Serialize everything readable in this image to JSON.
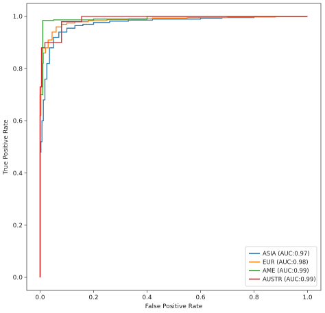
{
  "chart_data": {
    "type": "line",
    "title": "",
    "xlabel": "False Positive Rate",
    "ylabel": "True Positive Rate",
    "xlim": [
      -0.05,
      1.05
    ],
    "ylim": [
      -0.05,
      1.05
    ],
    "xticks": [
      "0.0",
      "0.2",
      "0.4",
      "0.6",
      "0.8",
      "1.0"
    ],
    "yticks": [
      "0.0",
      "0.2",
      "0.4",
      "0.6",
      "0.8",
      "1.0"
    ],
    "grid": false,
    "legend_position": "lower-right",
    "series": [
      {
        "name": "ASIA (AUC:0.97)",
        "color": "#1f77b4",
        "x": [
          0,
          0,
          0.003,
          0.003,
          0.007,
          0.007,
          0.012,
          0.012,
          0.018,
          0.018,
          0.025,
          0.025,
          0.035,
          0.035,
          0.05,
          0.05,
          0.07,
          0.07,
          0.1,
          0.1,
          0.13,
          0.13,
          0.16,
          0.16,
          0.2,
          0.2,
          0.26,
          0.26,
          0.33,
          0.33,
          0.42,
          0.42,
          0.6,
          0.6,
          0.68,
          0.68,
          0.8,
          0.8,
          1.0
        ],
        "y": [
          0,
          0.48,
          0.48,
          0.52,
          0.52,
          0.6,
          0.6,
          0.68,
          0.68,
          0.76,
          0.76,
          0.82,
          0.82,
          0.88,
          0.88,
          0.92,
          0.92,
          0.94,
          0.94,
          0.955,
          0.955,
          0.965,
          0.965,
          0.97,
          0.97,
          0.977,
          0.977,
          0.982,
          0.982,
          0.986,
          0.986,
          0.99,
          0.99,
          0.993,
          0.993,
          0.996,
          0.996,
          1.0,
          1.0
        ]
      },
      {
        "name": "EUR (AUC:0.98)",
        "color": "#ff7f0e",
        "x": [
          0,
          0,
          0.003,
          0.003,
          0.007,
          0.007,
          0.012,
          0.012,
          0.02,
          0.02,
          0.03,
          0.03,
          0.045,
          0.045,
          0.06,
          0.06,
          0.08,
          0.08,
          0.1,
          0.1,
          0.13,
          0.13,
          0.18,
          0.18,
          0.25,
          0.25,
          0.33,
          0.33,
          0.42,
          0.42,
          0.55,
          0.55,
          0.7,
          0.7,
          0.88,
          0.88,
          1.0
        ],
        "y": [
          0,
          0.62,
          0.62,
          0.73,
          0.73,
          0.82,
          0.82,
          0.86,
          0.86,
          0.88,
          0.88,
          0.91,
          0.91,
          0.94,
          0.94,
          0.96,
          0.96,
          0.97,
          0.97,
          0.975,
          0.975,
          0.98,
          0.98,
          0.984,
          0.984,
          0.988,
          0.988,
          0.991,
          0.991,
          0.994,
          0.994,
          0.996,
          0.996,
          0.998,
          0.998,
          1.0,
          1.0
        ]
      },
      {
        "name": "AME (AUC:0.99)",
        "color": "#2ca02c",
        "x": [
          0,
          0,
          0.01,
          0.01,
          0.05,
          0.05,
          0.2,
          0.2,
          0.4,
          0.4,
          1.0
        ],
        "y": [
          0,
          0.7,
          0.7,
          0.985,
          0.985,
          0.987,
          0.987,
          0.99,
          0.99,
          1.0,
          1.0
        ],
        "_note": ""
      },
      {
        "name": "AUSTR (AUC:0.99)",
        "color": "#d62728",
        "x": [
          0,
          0,
          0.005,
          0.005,
          0.018,
          0.018,
          0.08,
          0.08,
          0.155,
          0.155,
          1.0
        ],
        "y": [
          0,
          0.73,
          0.73,
          0.88,
          0.88,
          0.9,
          0.9,
          0.98,
          0.98,
          1.0,
          1.0
        ]
      }
    ]
  }
}
